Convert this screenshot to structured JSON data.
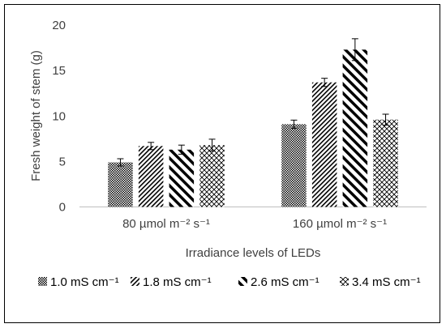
{
  "chart_data": {
    "type": "bar",
    "title": "",
    "xlabel": "Irradiance levels of LEDs",
    "ylabel": "Fresh weight of stem (g)",
    "ylim": [
      0,
      20
    ],
    "yticks": [
      0,
      5,
      10,
      15,
      20
    ],
    "grid": false,
    "legend_position": "bottom",
    "categories": [
      "80 µmol m⁻² s⁻¹",
      "160 µmol m⁻² s⁻¹"
    ],
    "series": [
      {
        "name": "1.0 mS cm⁻¹",
        "pattern": "crosshatch-dense",
        "values": [
          4.9,
          9.1
        ],
        "errors": [
          0.4,
          0.45
        ]
      },
      {
        "name": "1.8 mS cm⁻¹",
        "pattern": "diagonal-dense",
        "values": [
          6.7,
          13.7
        ],
        "errors": [
          0.4,
          0.45
        ]
      },
      {
        "name": "2.6 mS cm⁻¹",
        "pattern": "diagonal-wide",
        "values": [
          6.3,
          17.3
        ],
        "errors": [
          0.5,
          1.2
        ]
      },
      {
        "name": "3.4 mS cm⁻¹",
        "pattern": "diamond-grid",
        "values": [
          6.8,
          9.6
        ],
        "errors": [
          0.65,
          0.6
        ]
      }
    ],
    "colors": {
      "bar": "#000000",
      "axis": "#bfbfbf",
      "text": "#404040"
    }
  }
}
